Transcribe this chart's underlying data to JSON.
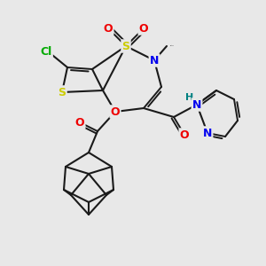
{
  "background_color": "#e8e8e8",
  "bond_color": "#1a1a1a",
  "atom_colors": {
    "S": "#cccc00",
    "N": "#0000ee",
    "O": "#ee0000",
    "Cl": "#00aa00",
    "H": "#008080",
    "C": "#1a1a1a"
  },
  "figsize": [
    3.0,
    3.0
  ],
  "dpi": 100
}
